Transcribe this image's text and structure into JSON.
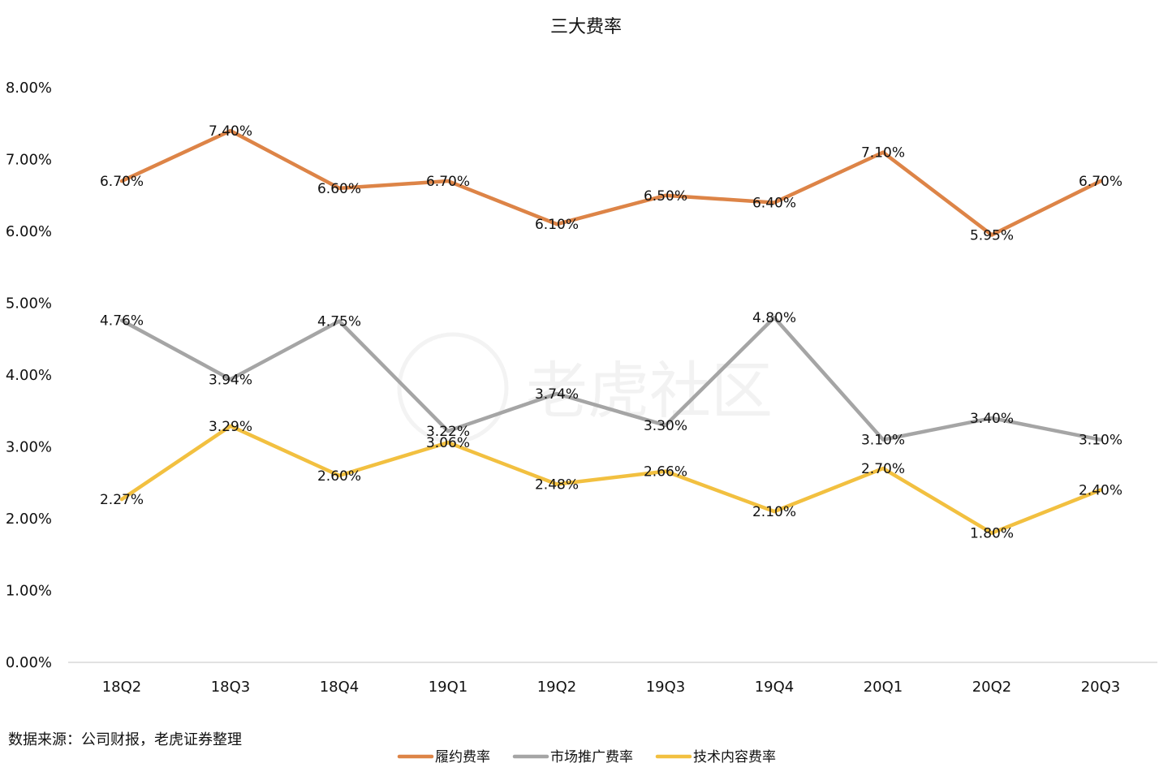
{
  "chart_data": {
    "type": "line",
    "title": "三大费率",
    "categories": [
      "18Q2",
      "18Q3",
      "18Q4",
      "19Q1",
      "19Q2",
      "19Q3",
      "19Q4",
      "20Q1",
      "20Q2",
      "20Q3"
    ],
    "ylim": [
      0,
      8
    ],
    "yticks": [
      "0.00%",
      "1.00%",
      "2.00%",
      "3.00%",
      "4.00%",
      "5.00%",
      "6.00%",
      "7.00%",
      "8.00%"
    ],
    "grid": false,
    "legend_position": "bottom",
    "series": [
      {
        "name": "履约费率",
        "color": "#dd8447",
        "values": [
          6.7,
          7.4,
          6.6,
          6.7,
          6.1,
          6.5,
          6.4,
          7.1,
          5.95,
          6.7
        ],
        "labels": [
          "6.70%",
          "7.40%",
          "6.60%",
          "6.70%",
          "6.10%",
          "6.50%",
          "6.40%",
          "7.10%",
          "5.95%",
          "6.70%"
        ]
      },
      {
        "name": "市场推广费率",
        "color": "#a5a5a5",
        "values": [
          4.76,
          3.94,
          4.75,
          3.22,
          3.74,
          3.3,
          4.8,
          3.1,
          3.4,
          3.1
        ],
        "labels": [
          "4.76%",
          "3.94%",
          "4.75%",
          "3.22%",
          "3.74%",
          "3.30%",
          "4.80%",
          "3.10%",
          "3.40%",
          "3.10%"
        ]
      },
      {
        "name": "技术内容费率",
        "color": "#f2c040",
        "values": [
          2.27,
          3.29,
          2.6,
          3.06,
          2.48,
          2.66,
          2.1,
          2.7,
          1.8,
          2.4
        ],
        "labels": [
          "2.27%",
          "3.29%",
          "2.60%",
          "3.06%",
          "2.48%",
          "2.66%",
          "2.10%",
          "2.70%",
          "1.80%",
          "2.40%"
        ]
      }
    ],
    "source_note": "数据来源：公司财报，老虎证券整理",
    "watermark": "老虎社区"
  }
}
